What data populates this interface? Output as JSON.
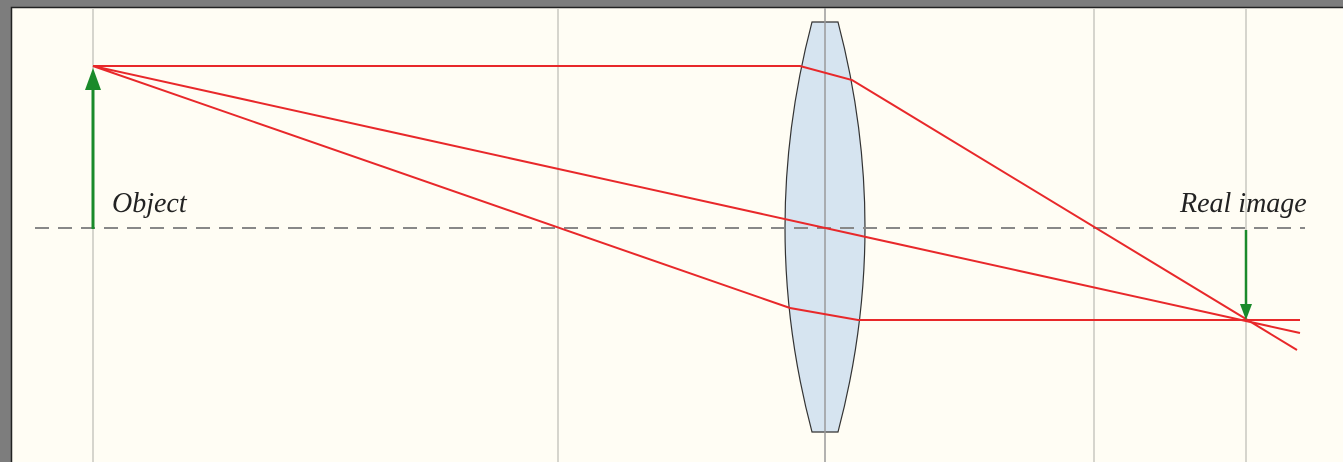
{
  "labels": {
    "object": "Object",
    "image": "Real image"
  }
}
